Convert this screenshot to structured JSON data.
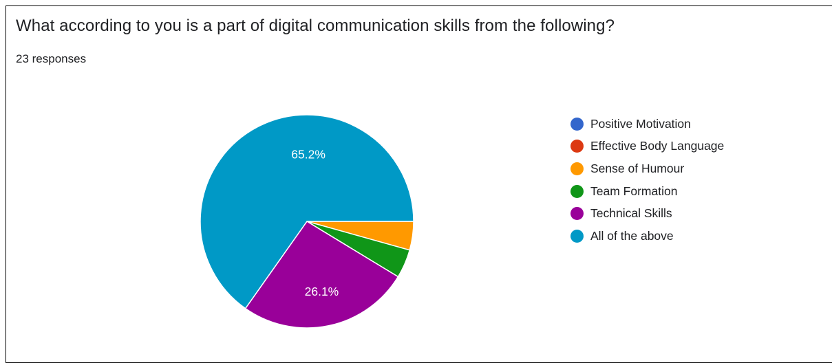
{
  "card": {
    "title": "What according to you is a part of digital communication skills from the following?",
    "responses_label": "23 responses"
  },
  "chart_data": {
    "type": "pie",
    "categories": [
      "Positive Motivation",
      "Effective Body Language",
      "Sense of Humour",
      "Team Formation",
      "Technical Skills",
      "All of the above"
    ],
    "values": [
      0,
      0,
      1,
      1,
      6,
      15
    ],
    "percentages": [
      0,
      0,
      4.3,
      4.3,
      26.1,
      65.2
    ],
    "data_labels": [
      "",
      "",
      "",
      "",
      "26.1%",
      "65.2%"
    ],
    "colors": [
      "#3366cc",
      "#dc3912",
      "#ff9900",
      "#109618",
      "#990099",
      "#0099c6"
    ],
    "legend_position": "right",
    "start_angle_deg": 90,
    "direction": "clockwise"
  }
}
